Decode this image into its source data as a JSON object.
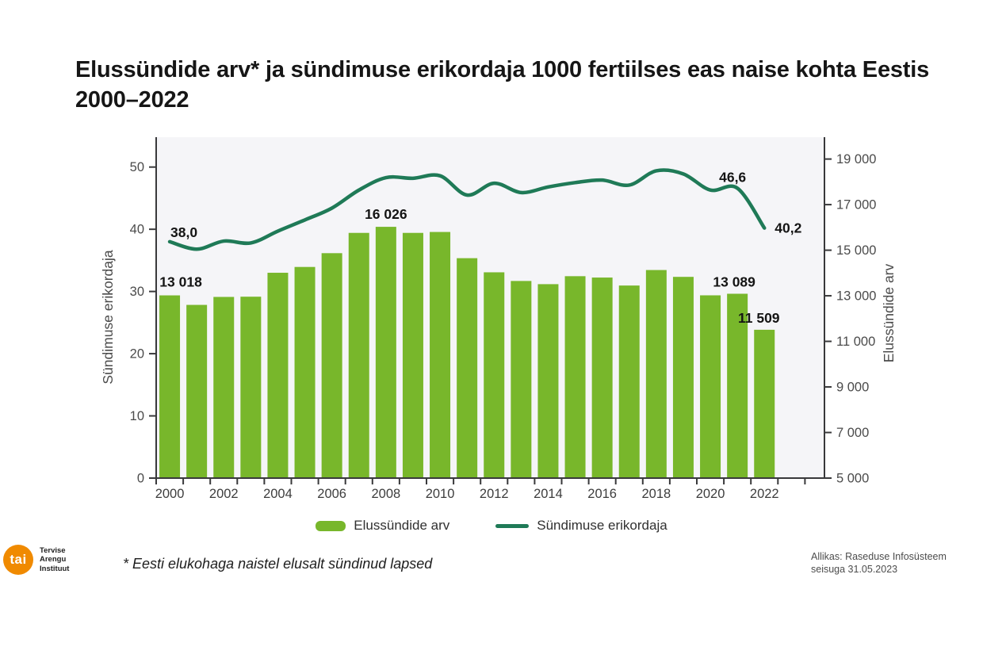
{
  "title": "Elussündide arv* ja sündimuse erikordaja 1000 fertiilses eas naise kohta Eestis 2000–2022",
  "chart_data": {
    "type": "bar",
    "subtype": "bar+line combo, dual axis",
    "categories": [
      2000,
      2001,
      2002,
      2003,
      2004,
      2005,
      2006,
      2007,
      2008,
      2009,
      2010,
      2011,
      2012,
      2013,
      2014,
      2015,
      2016,
      2017,
      2018,
      2019,
      2020,
      2021,
      2022
    ],
    "series": [
      {
        "name": "Elussündide arv",
        "type": "bar",
        "axis": "right",
        "color": "#78B72B",
        "values": [
          13018,
          12600,
          12950,
          12960,
          14010,
          14265,
          14870,
          15760,
          16026,
          15760,
          15800,
          14650,
          14030,
          13650,
          13510,
          13860,
          13800,
          13450,
          14130,
          13830,
          13020,
          13089,
          11509
        ]
      },
      {
        "name": "Sündimuse erikordaja",
        "type": "line",
        "axis": "left",
        "color": "#1F7A57",
        "values": [
          38.0,
          36.8,
          38.1,
          37.8,
          39.7,
          41.5,
          43.4,
          46.3,
          48.3,
          48.2,
          48.6,
          45.5,
          47.4,
          45.9,
          46.8,
          47.5,
          47.9,
          47.1,
          49.4,
          48.9,
          46.3,
          46.6,
          40.2
        ]
      }
    ],
    "left_axis": {
      "label": "Sündimuse erikordaja",
      "min": 0,
      "max": 50,
      "step": 10,
      "tick_labels": [
        "0",
        "10",
        "20",
        "30",
        "40",
        "50"
      ]
    },
    "right_axis": {
      "label": "Elussündide arv",
      "min": 5000,
      "max": 19000,
      "step": 2000,
      "tick_labels": [
        "5 000",
        "7 000",
        "9 000",
        "11 000",
        "13 000",
        "15 000",
        "17 000",
        "19 000"
      ]
    },
    "x_tick_labels": [
      "2000",
      "2002",
      "2004",
      "2006",
      "2008",
      "2010",
      "2012",
      "2014",
      "2016",
      "2018",
      "2020",
      "2022"
    ],
    "grid": "off",
    "plot_background": "#f5f5f8",
    "value_labels": [
      {
        "series": "line",
        "year": 2000,
        "text": "38,0"
      },
      {
        "series": "bar",
        "year": 2000,
        "text": "13 018"
      },
      {
        "series": "bar",
        "year": 2008,
        "text": "16 026"
      },
      {
        "series": "line",
        "year": 2021,
        "text": "46,6"
      },
      {
        "series": "bar",
        "year": 2021,
        "text": "13 089"
      },
      {
        "series": "line",
        "year": 2022,
        "text": "40,2"
      },
      {
        "series": "bar",
        "year": 2022,
        "text": "11 509"
      }
    ]
  },
  "legend": {
    "items": [
      {
        "label": "Elussündide arv",
        "swatch": "bar-swatch"
      },
      {
        "label": "Sündimuse erikordaja",
        "swatch": "line-swatch"
      }
    ]
  },
  "footnote": "* Eesti elukohaga naistel elusalt sündinud lapsed",
  "source": {
    "line1": "Allikas: Raseduse Infosüsteem",
    "line2": "seisuga 31.05.2023"
  },
  "logo": {
    "circle_text": "tai",
    "org_lines": [
      "Tervise",
      "Arengu",
      "Instituut"
    ],
    "orange": "#F08A00"
  },
  "colors": {
    "bar": "#78B72B",
    "line": "#1F7A57",
    "axis": "#39393B",
    "tick_text": "#4b4b4b",
    "title_text": "#161616",
    "plot_bg": "#f5f5f8"
  }
}
